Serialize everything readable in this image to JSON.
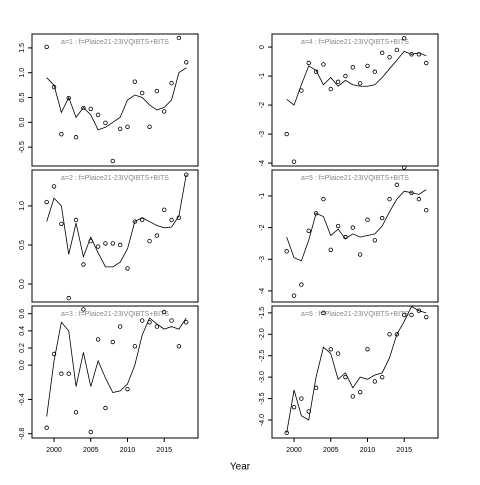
{
  "x_label": "Year",
  "chart_data": [
    {
      "type": "line",
      "title": "a=1  :  f=Plaice21-23IVQIBTS+BITS",
      "x": [
        1999,
        2000,
        2001,
        2002,
        2003,
        2004,
        2005,
        2006,
        2007,
        2008,
        2009,
        2010,
        2011,
        2012,
        2013,
        2014,
        2015,
        2016,
        2017,
        2018
      ],
      "series": [
        {
          "style": "points",
          "color": "#000000",
          "values": [
            1.52,
            0.71,
            -0.24,
            0.49,
            -0.3,
            0.29,
            0.27,
            0.15,
            -0.01,
            -0.78,
            -0.13,
            -0.09,
            0.82,
            0.59,
            -0.09,
            0.63,
            0.22,
            0.79,
            1.7,
            1.21
          ]
        },
        {
          "style": "line",
          "color": "#000000",
          "values": [
            0.9,
            0.75,
            0.2,
            0.5,
            0.1,
            0.3,
            0.15,
            -0.15,
            -0.1,
            0.0,
            0.1,
            0.45,
            0.55,
            0.5,
            0.35,
            0.25,
            0.3,
            0.45,
            1.0,
            1.1
          ]
        }
      ],
      "xlim": [
        1997,
        2019.6
      ],
      "ylim": [
        -0.88,
        1.78
      ],
      "yticks": [
        {
          "value": -0.5,
          "label": "-0.5"
        },
        {
          "value": 0,
          "label": "0.0"
        },
        {
          "value": 0.5,
          "label": "0.5"
        },
        {
          "value": 1,
          "label": "1.0"
        },
        {
          "value": 1.5,
          "label": "1.5"
        }
      ]
    },
    {
      "type": "line",
      "title": "a=2  :  f=Plaice21-23IVQIBTS+BITS",
      "x": [
        1999,
        2000,
        2001,
        2002,
        2003,
        2004,
        2005,
        2006,
        2007,
        2008,
        2009,
        2010,
        2011,
        2012,
        2013,
        2014,
        2015,
        2016,
        2017,
        2018
      ],
      "series": [
        {
          "style": "points",
          "color": "#000000",
          "values": [
            1.05,
            1.25,
            0.77,
            -0.18,
            0.82,
            0.25,
            0.55,
            0.48,
            0.52,
            0.52,
            0.5,
            0.2,
            0.8,
            0.82,
            0.55,
            0.62,
            0.95,
            0.82,
            0.85,
            1.4
          ]
        },
        {
          "style": "line",
          "color": "#000000",
          "values": [
            0.8,
            1.1,
            1.0,
            0.38,
            0.78,
            0.35,
            0.6,
            0.4,
            0.22,
            0.22,
            0.28,
            0.45,
            0.8,
            0.85,
            0.8,
            0.75,
            0.72,
            0.73,
            0.87,
            1.4
          ]
        }
      ],
      "xlim": [
        1997,
        2019.6
      ],
      "ylim": [
        -0.23,
        1.46
      ],
      "yticks": [
        {
          "value": 0,
          "label": "0.0"
        },
        {
          "value": 0.5,
          "label": "0.5"
        },
        {
          "value": 1,
          "label": "1.0"
        }
      ]
    },
    {
      "type": "line",
      "title": "a=3  :  f=Plaice21-23IVQIBTS+BITS",
      "x": [
        1999,
        2000,
        2001,
        2002,
        2003,
        2004,
        2005,
        2006,
        2007,
        2008,
        2009,
        2010,
        2011,
        2012,
        2013,
        2014,
        2015,
        2016,
        2017,
        2018
      ],
      "series": [
        {
          "style": "points",
          "color": "#000000",
          "values": [
            -0.73,
            0.13,
            -0.1,
            -0.1,
            -0.55,
            0.65,
            -0.78,
            0.3,
            -0.5,
            0.27,
            0.45,
            -0.28,
            0.22,
            0.52,
            0.5,
            0.45,
            0.62,
            0.52,
            0.22,
            0.5
          ]
        },
        {
          "style": "line",
          "color": "#000000",
          "values": [
            -0.6,
            0.05,
            0.5,
            0.4,
            -0.25,
            0.15,
            -0.25,
            0.05,
            -0.15,
            -0.32,
            -0.3,
            -0.22,
            0.0,
            0.35,
            0.55,
            0.48,
            0.42,
            0.45,
            0.42,
            0.55
          ]
        }
      ],
      "xlim": [
        1997,
        2019.6
      ],
      "ylim": [
        -0.85,
        0.69
      ],
      "xticks": [
        2000,
        2005,
        2010,
        2015
      ],
      "yticks": [
        {
          "value": -0.8,
          "label": "-0.8"
        },
        {
          "value": -0.4,
          "label": "-0.4"
        },
        {
          "value": 0,
          "label": "0.0"
        },
        0.2,
        0.4,
        0.6
      ]
    },
    {
      "type": "line",
      "title": "a=4  :  f=Plaice21-23IVQIBTS+BITS",
      "x": [
        1999,
        2000,
        2001,
        2002,
        2003,
        2004,
        2005,
        2006,
        2007,
        2008,
        2009,
        2010,
        2011,
        2012,
        2013,
        2014,
        2015,
        2016,
        2017,
        2018
      ],
      "series": [
        {
          "style": "points",
          "color": "#000000",
          "values": [
            -3.0,
            -3.95,
            -1.5,
            -0.55,
            -0.85,
            -0.6,
            -1.45,
            -1.2,
            -1.0,
            -0.7,
            -1.25,
            -0.65,
            -0.85,
            -0.2,
            -0.35,
            -0.1,
            0.3,
            -0.25,
            -0.25,
            -0.55
          ]
        },
        {
          "style": "line",
          "color": "#000000",
          "values": [
            -1.8,
            -2.0,
            -1.3,
            -0.65,
            -0.8,
            -1.3,
            -1.05,
            -1.35,
            -1.15,
            -1.3,
            -1.35,
            -1.35,
            -1.3,
            -1.05,
            -0.75,
            -0.45,
            -0.15,
            -0.25,
            -0.2,
            -0.3
          ]
        }
      ],
      "xlim": [
        1997,
        2019.6
      ],
      "ylim": [
        -4.1,
        0.45
      ],
      "yticks": [
        -4,
        -3,
        -2,
        -1,
        0
      ]
    },
    {
      "type": "line",
      "title": "a=5  :  f=Plaice21-23IVQIBTS+BITS",
      "x": [
        1999,
        2000,
        2001,
        2002,
        2003,
        2004,
        2005,
        2006,
        2007,
        2008,
        2009,
        2010,
        2011,
        2012,
        2013,
        2014,
        2015,
        2016,
        2017,
        2018
      ],
      "series": [
        {
          "style": "points",
          "color": "#000000",
          "values": [
            -2.75,
            -4.15,
            -3.8,
            -2.1,
            -1.55,
            -1.1,
            -2.7,
            -1.95,
            -2.3,
            -2.0,
            -2.85,
            -1.75,
            -2.4,
            -1.7,
            -1.1,
            -0.65,
            -0.1,
            -0.9,
            -1.1,
            -1.45
          ]
        },
        {
          "style": "line",
          "color": "#000000",
          "values": [
            -2.3,
            -2.95,
            -3.05,
            -2.4,
            -1.55,
            -1.65,
            -2.25,
            -2.05,
            -2.35,
            -2.2,
            -2.3,
            -2.25,
            -2.2,
            -1.95,
            -1.5,
            -1.1,
            -0.85,
            -0.9,
            -0.95,
            -0.8
          ]
        }
      ],
      "xlim": [
        1997,
        2019.6
      ],
      "ylim": [
        -4.35,
        -0.18
      ],
      "yticks": [
        -4,
        -3,
        -2,
        -1
      ]
    },
    {
      "type": "line",
      "title": "a=6  :  f=Plaice21-23IVQIBTS+BITS",
      "x": [
        1999,
        2000,
        2001,
        2002,
        2003,
        2004,
        2005,
        2006,
        2007,
        2008,
        2009,
        2010,
        2011,
        2012,
        2013,
        2014,
        2015,
        2016,
        2017,
        2018
      ],
      "series": [
        {
          "style": "points",
          "color": "#000000",
          "values": [
            -4.3,
            -3.7,
            -3.5,
            -3.8,
            -3.25,
            -1.5,
            -2.35,
            -2.45,
            -3.0,
            -3.45,
            -3.35,
            -2.35,
            -3.1,
            -3.0,
            -2.0,
            -2.0,
            -1.55,
            -1.55,
            -1.45,
            -1.6
          ]
        },
        {
          "style": "line",
          "color": "#000000",
          "values": [
            -4.3,
            -3.3,
            -3.9,
            -4.0,
            -3.0,
            -2.3,
            -2.45,
            -3.05,
            -2.9,
            -3.25,
            -3.0,
            -3.05,
            -2.95,
            -2.9,
            -2.55,
            -2.0,
            -1.7,
            -1.35,
            -1.45,
            -1.5
          ]
        }
      ],
      "xlim": [
        1997,
        2019.6
      ],
      "ylim": [
        -4.42,
        -1.34
      ],
      "xticks": [
        2000,
        2005,
        2010,
        2015
      ],
      "yticks": [
        {
          "value": -4,
          "label": "-4.0"
        },
        -3.5,
        {
          "value": -3,
          "label": "-3.0"
        },
        -2.5,
        {
          "value": -2,
          "label": "-2.0"
        },
        -1.5
      ]
    }
  ]
}
